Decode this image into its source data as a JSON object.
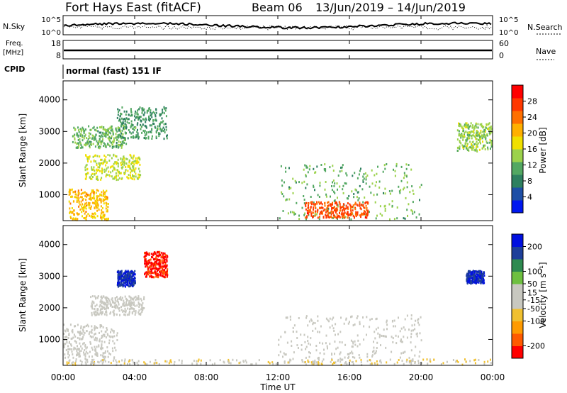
{
  "header": {
    "title": "Fort Hays East (fitACF)",
    "beam": "Beam 06",
    "date_range": "13/Jun/2019 – 14/Jun/2019"
  },
  "strip_sky": {
    "left_label": "N.Sky",
    "left_ticks": [
      "10^5",
      "10^0"
    ],
    "right_ticks": [
      "10^5",
      "10^0"
    ],
    "right_label": "N.Search"
  },
  "strip_freq": {
    "left_label_1": "Freq.",
    "left_label_2": "[MHz]",
    "left_ticks": [
      "18",
      "8"
    ],
    "right_ticks": [
      "60",
      "0"
    ],
    "right_label": "Nave"
  },
  "cpid": {
    "label": "CPID",
    "mode": "normal (fast) 151 IF"
  },
  "colors": {
    "power_scale": [
      "#0018f0",
      "#1e4fa6",
      "#2e8060",
      "#53a862",
      "#9cd24c",
      "#f0e000",
      "#ffb000",
      "#ff7000",
      "#ff3800",
      "#ff0000"
    ],
    "velocity_scale": [
      "#ff0000",
      "#ff5a00",
      "#ff9a00",
      "#f0c030",
      "#c8c8c0",
      "#c8c8c0",
      "#6ec040",
      "#2e8a50",
      "#1e3f9a",
      "#0010e0"
    ]
  },
  "chart_data": [
    {
      "type": "heatmap",
      "name": "power",
      "ylabel": "Slant Range [km]",
      "x_ticks": [
        "00:00",
        "04:00",
        "08:00",
        "12:00",
        "16:00",
        "20:00",
        "00:00"
      ],
      "y_ticks": [
        1000,
        2000,
        3000,
        4000
      ],
      "ylim": [
        180,
        4600
      ],
      "colorbar": {
        "label": "Power [dB]",
        "ticks": [
          4,
          8,
          12,
          16,
          20,
          24,
          28
        ],
        "range": [
          0,
          32
        ]
      },
      "regions": [
        {
          "t": [
            0.3,
            2.5
          ],
          "r": [
            200,
            1200
          ],
          "level": 20
        },
        {
          "t": [
            1.2,
            4.3
          ],
          "r": [
            1500,
            2300
          ],
          "level": 16
        },
        {
          "t": [
            0.5,
            3.5
          ],
          "r": [
            2500,
            3200
          ],
          "level": 12
        },
        {
          "t": [
            3.0,
            5.8
          ],
          "r": [
            2800,
            3800
          ],
          "level": 10
        },
        {
          "t": [
            12.0,
            20.0
          ],
          "r": [
            250,
            2000
          ],
          "level": 12
        },
        {
          "t": [
            13.5,
            17.0
          ],
          "r": [
            300,
            800
          ],
          "level": 26
        },
        {
          "t": [
            22.0,
            24.0
          ],
          "r": [
            2400,
            3300
          ],
          "level": 14
        }
      ]
    },
    {
      "type": "heatmap",
      "name": "velocity",
      "ylabel": "Slant Range [km]",
      "xlabel": "Time UT",
      "x_ticks": [
        "00:00",
        "04:00",
        "08:00",
        "12:00",
        "16:00",
        "20:00",
        "00:00"
      ],
      "y_ticks": [
        1000,
        2000,
        3000,
        4000
      ],
      "ylim": [
        180,
        4600
      ],
      "colorbar": {
        "label": "Velocity [m s⁻¹]",
        "ticks": [
          -200,
          -100,
          -50,
          -15,
          15,
          50,
          100,
          200
        ],
        "range": [
          -250,
          250
        ]
      },
      "regions": [
        {
          "t": [
            0.0,
            3.0
          ],
          "r": [
            300,
            1500
          ],
          "level": 0
        },
        {
          "t": [
            1.5,
            4.5
          ],
          "r": [
            1800,
            2400
          ],
          "level": 0
        },
        {
          "t": [
            4.5,
            5.8
          ],
          "r": [
            3000,
            3800
          ],
          "level": -220
        },
        {
          "t": [
            3.0,
            4.0
          ],
          "r": [
            2700,
            3200
          ],
          "level": 200
        },
        {
          "t": [
            12.0,
            20.0
          ],
          "r": [
            300,
            1800
          ],
          "level": 0
        },
        {
          "t": [
            0.0,
            24.0
          ],
          "r": [
            180,
            400
          ],
          "level": -40
        },
        {
          "t": [
            22.5,
            23.5
          ],
          "r": [
            2800,
            3200
          ],
          "level": 200
        }
      ]
    }
  ]
}
